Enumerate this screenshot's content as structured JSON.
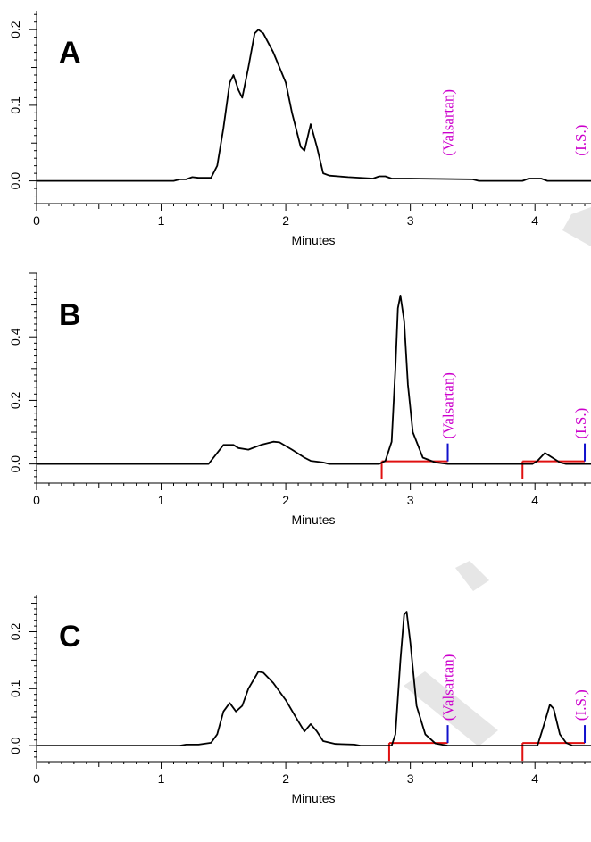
{
  "chart_data": [
    {
      "type": "line",
      "panel_label": "A",
      "xlabel": "Minutes",
      "xlim": [
        0,
        4.45
      ],
      "ylim": [
        -0.03,
        0.225
      ],
      "x_ticks": [
        0,
        1,
        2,
        3,
        4
      ],
      "y_ticks": [
        0.0,
        0.1,
        0.2
      ],
      "y_tick_labels": [
        "0.0",
        "0.1",
        "0.2"
      ],
      "series": [
        {
          "points": [
            [
              0,
              0
            ],
            [
              1.1,
              0
            ],
            [
              1.15,
              0.002
            ],
            [
              1.2,
              0.002
            ],
            [
              1.25,
              0.005
            ],
            [
              1.3,
              0.004
            ],
            [
              1.4,
              0.004
            ],
            [
              1.45,
              0.02
            ],
            [
              1.5,
              0.07
            ],
            [
              1.55,
              0.13
            ],
            [
              1.58,
              0.14
            ],
            [
              1.62,
              0.12
            ],
            [
              1.65,
              0.11
            ],
            [
              1.7,
              0.15
            ],
            [
              1.75,
              0.195
            ],
            [
              1.78,
              0.2
            ],
            [
              1.82,
              0.195
            ],
            [
              1.9,
              0.17
            ],
            [
              2.0,
              0.13
            ],
            [
              2.05,
              0.09
            ],
            [
              2.12,
              0.045
            ],
            [
              2.15,
              0.04
            ],
            [
              2.2,
              0.075
            ],
            [
              2.25,
              0.045
            ],
            [
              2.3,
              0.01
            ],
            [
              2.35,
              0.007
            ],
            [
              2.5,
              0.005
            ],
            [
              2.7,
              0.003
            ],
            [
              2.75,
              0.006
            ],
            [
              2.8,
              0.006
            ],
            [
              2.85,
              0.003
            ],
            [
              3.0,
              0.003
            ],
            [
              3.5,
              0.002
            ],
            [
              3.55,
              0
            ],
            [
              3.9,
              0
            ],
            [
              3.95,
              0.003
            ],
            [
              4.05,
              0.003
            ],
            [
              4.1,
              0
            ],
            [
              4.45,
              0
            ]
          ]
        }
      ],
      "annotations": [
        {
          "text": "(Valsartan)",
          "x": 3.3
        },
        {
          "text": "(I.S.)",
          "x": 4.42
        }
      ]
    },
    {
      "type": "line",
      "panel_label": "B",
      "xlabel": "Minutes",
      "xlim": [
        0,
        4.45
      ],
      "ylim": [
        -0.06,
        0.6
      ],
      "x_ticks": [
        0,
        1,
        2,
        3,
        4
      ],
      "y_ticks": [
        0.0,
        0.2,
        0.4
      ],
      "y_tick_labels": [
        "0.0",
        "0.2",
        "0.4"
      ],
      "series": [
        {
          "points": [
            [
              0,
              0
            ],
            [
              1.38,
              0
            ],
            [
              1.42,
              0.02
            ],
            [
              1.5,
              0.06
            ],
            [
              1.58,
              0.06
            ],
            [
              1.62,
              0.05
            ],
            [
              1.7,
              0.045
            ],
            [
              1.8,
              0.06
            ],
            [
              1.9,
              0.07
            ],
            [
              1.95,
              0.068
            ],
            [
              2.05,
              0.045
            ],
            [
              2.15,
              0.02
            ],
            [
              2.2,
              0.01
            ],
            [
              2.3,
              0.005
            ],
            [
              2.35,
              0
            ],
            [
              2.75,
              0
            ],
            [
              2.8,
              0.01
            ],
            [
              2.85,
              0.07
            ],
            [
              2.88,
              0.3
            ],
            [
              2.9,
              0.49
            ],
            [
              2.92,
              0.53
            ],
            [
              2.95,
              0.45
            ],
            [
              2.98,
              0.25
            ],
            [
              3.02,
              0.1
            ],
            [
              3.1,
              0.02
            ],
            [
              3.2,
              0.005
            ],
            [
              3.3,
              0
            ],
            [
              3.98,
              0
            ],
            [
              4.02,
              0.01
            ],
            [
              4.08,
              0.035
            ],
            [
              4.12,
              0.025
            ],
            [
              4.2,
              0.005
            ],
            [
              4.25,
              0
            ],
            [
              4.45,
              0
            ]
          ]
        }
      ],
      "baselines": [
        {
          "x_start": 2.77,
          "x_end": 3.3
        },
        {
          "x_start": 3.9,
          "x_end": 4.4
        }
      ],
      "markers": [
        3.3,
        4.4
      ],
      "annotations": [
        {
          "text": "(Valsartan)",
          "x": 3.3
        },
        {
          "text": "(I.S.)",
          "x": 4.4
        }
      ]
    },
    {
      "type": "line",
      "panel_label": "C",
      "xlabel": "Minutes",
      "xlim": [
        0,
        4.45
      ],
      "ylim": [
        -0.028,
        0.265
      ],
      "x_ticks": [
        0,
        1,
        2,
        3,
        4
      ],
      "y_ticks": [
        0.0,
        0.1,
        0.2
      ],
      "y_tick_labels": [
        "0.0",
        "0.1",
        "0.2"
      ],
      "series": [
        {
          "points": [
            [
              0,
              0
            ],
            [
              1.15,
              0
            ],
            [
              1.2,
              0.002
            ],
            [
              1.3,
              0.002
            ],
            [
              1.4,
              0.005
            ],
            [
              1.45,
              0.02
            ],
            [
              1.5,
              0.06
            ],
            [
              1.55,
              0.075
            ],
            [
              1.6,
              0.06
            ],
            [
              1.65,
              0.07
            ],
            [
              1.7,
              0.1
            ],
            [
              1.78,
              0.13
            ],
            [
              1.82,
              0.128
            ],
            [
              1.9,
              0.11
            ],
            [
              2.0,
              0.08
            ],
            [
              2.08,
              0.05
            ],
            [
              2.15,
              0.025
            ],
            [
              2.2,
              0.038
            ],
            [
              2.25,
              0.025
            ],
            [
              2.3,
              0.008
            ],
            [
              2.4,
              0.003
            ],
            [
              2.55,
              0.002
            ],
            [
              2.6,
              0
            ],
            [
              2.85,
              0
            ],
            [
              2.88,
              0.02
            ],
            [
              2.92,
              0.15
            ],
            [
              2.95,
              0.23
            ],
            [
              2.97,
              0.235
            ],
            [
              3.0,
              0.18
            ],
            [
              3.05,
              0.07
            ],
            [
              3.12,
              0.02
            ],
            [
              3.2,
              0.004
            ],
            [
              3.3,
              0
            ],
            [
              4.02,
              0
            ],
            [
              4.07,
              0.035
            ],
            [
              4.12,
              0.072
            ],
            [
              4.15,
              0.065
            ],
            [
              4.2,
              0.02
            ],
            [
              4.25,
              0.005
            ],
            [
              4.3,
              0
            ],
            [
              4.45,
              0
            ]
          ]
        }
      ],
      "baselines": [
        {
          "x_start": 2.83,
          "x_end": 3.3
        },
        {
          "x_start": 3.9,
          "x_end": 4.4
        }
      ],
      "markers": [
        3.3,
        4.4
      ],
      "annotations": [
        {
          "text": "(Valsartan)",
          "x": 3.3
        },
        {
          "text": "(I.S.)",
          "x": 4.42
        }
      ]
    }
  ]
}
